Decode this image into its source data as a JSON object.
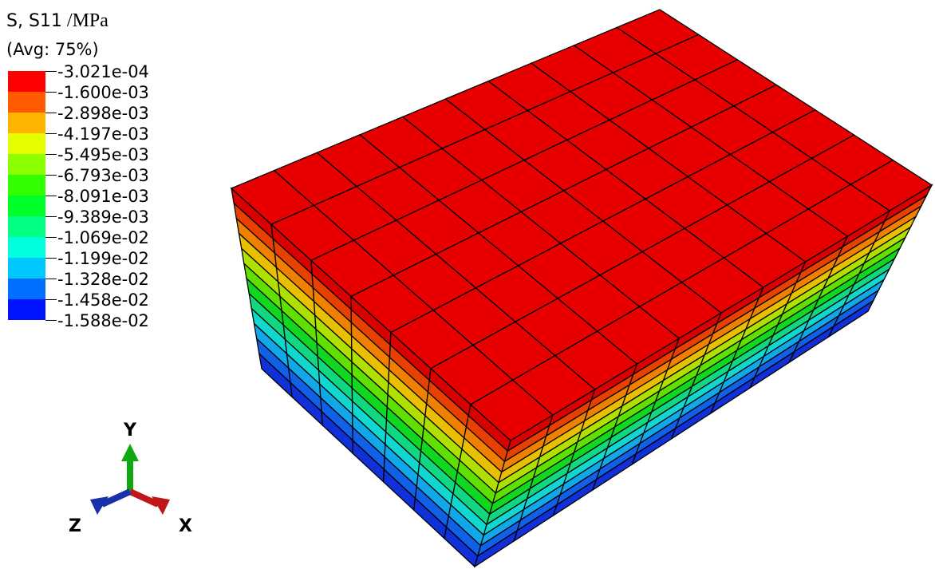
{
  "legend": {
    "title": "S, S11",
    "unit": "/MPa",
    "subtitle": "(Avg: 75%)",
    "labels": [
      "-3.021e-04",
      "-1.600e-03",
      "-2.898e-03",
      "-4.197e-03",
      "-5.495e-03",
      "-6.793e-03",
      "-8.091e-03",
      "-9.389e-03",
      "-1.069e-02",
      "-1.199e-02",
      "-1.328e-02",
      "-1.458e-02",
      "-1.588e-02"
    ],
    "colors": [
      "#ff0000",
      "#ff5a00",
      "#ffb400",
      "#e6ff00",
      "#8cff00",
      "#32ff00",
      "#00ff28",
      "#00ff82",
      "#00ffdc",
      "#00c8ff",
      "#006eff",
      "#0014ff"
    ]
  },
  "triad": {
    "y_label": "Y",
    "x_label": "X",
    "z_label": "Z",
    "colors": {
      "y": "#10a810",
      "x": "#c01818",
      "z": "#1830a8"
    }
  },
  "mesh": {
    "top_color": "#e80000",
    "side_bands": [
      "#d80000",
      "#e84000",
      "#f08000",
      "#e8c000",
      "#b0e000",
      "#60e000",
      "#10d820",
      "#10d880",
      "#10d8d0",
      "#10a8e8",
      "#1060e8",
      "#1030d8"
    ]
  }
}
